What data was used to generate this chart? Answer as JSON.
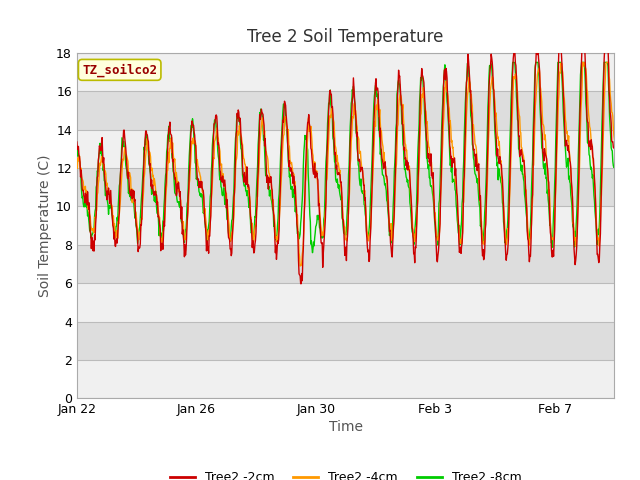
{
  "title": "Tree 2 Soil Temperature",
  "xlabel": "Time",
  "ylabel": "Soil Temperature (C)",
  "ylim": [
    0,
    18
  ],
  "yticks": [
    0,
    2,
    4,
    6,
    8,
    10,
    12,
    14,
    16,
    18
  ],
  "xtick_labels": [
    "Jan 22",
    "Jan 26",
    "Jan 30",
    "Feb 3",
    "Feb 7"
  ],
  "xtick_positions": [
    0,
    4,
    8,
    12,
    16
  ],
  "legend_labels": [
    "Tree2 -2cm",
    "Tree2 -4cm",
    "Tree2 -8cm"
  ],
  "legend_colors": [
    "#cc0000",
    "#ff9900",
    "#00cc00"
  ],
  "annotation_text": "TZ_soilco2",
  "annotation_bg": "#ffffdd",
  "annotation_border": "#bbbb00",
  "annotation_fg": "#990000",
  "bg_color": "#ffffff",
  "plot_bg_color": "#dddddd",
  "band_color": "#f0f0f0",
  "title_fontsize": 12,
  "axis_label_fontsize": 10,
  "tick_fontsize": 9,
  "line_width": 1.0,
  "xlim": [
    0,
    18
  ]
}
